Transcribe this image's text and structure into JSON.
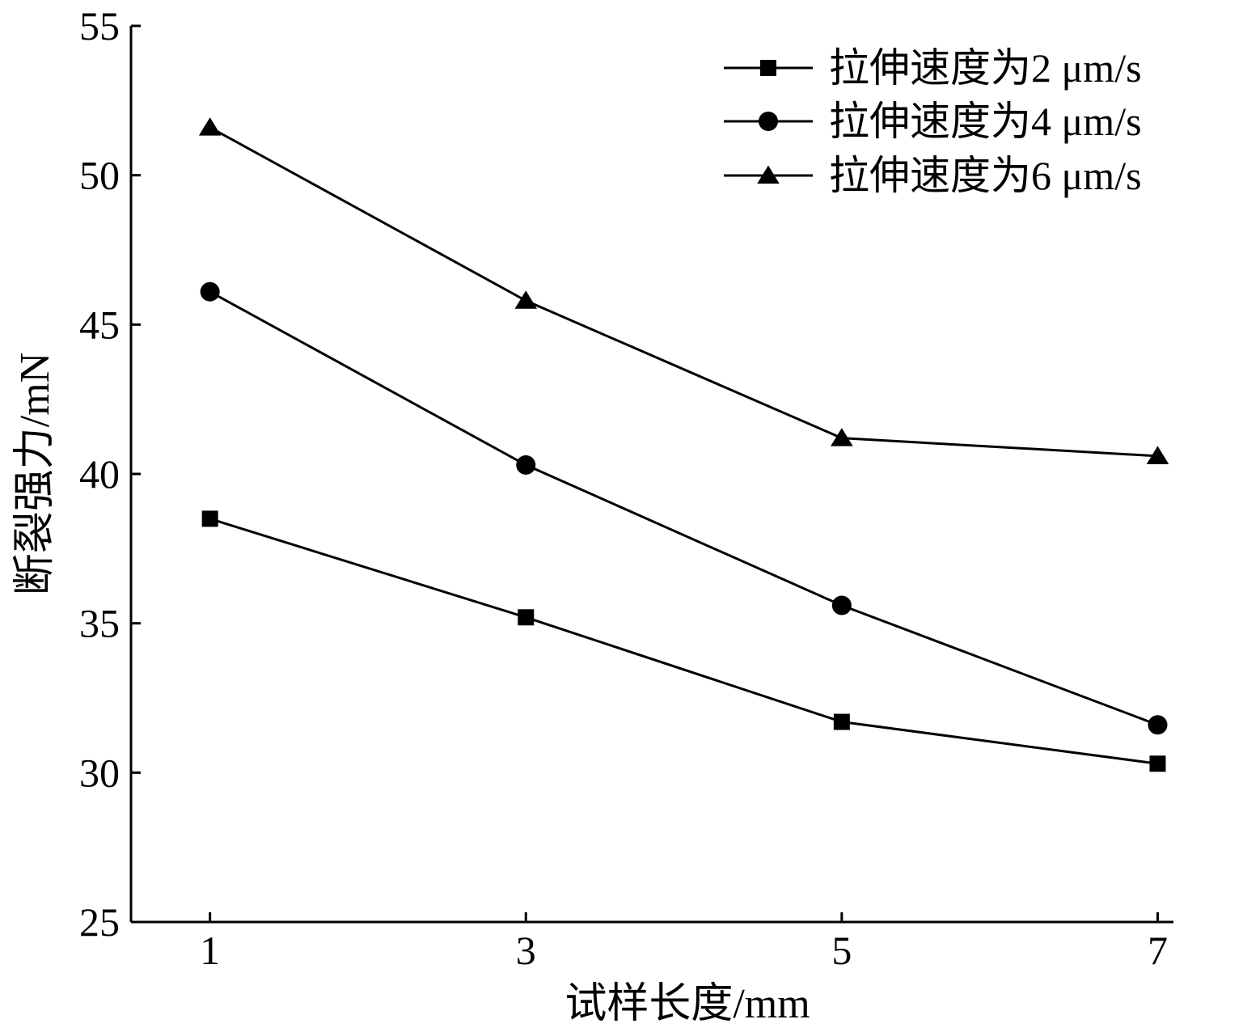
{
  "chart_data": {
    "type": "line",
    "xlabel": "试样长度/mm",
    "ylabel": "断裂强力/mN",
    "x": [
      1,
      3,
      5,
      7
    ],
    "xticks": [
      "1",
      "3",
      "5",
      "7"
    ],
    "xlim": [
      0.5,
      7.1
    ],
    "yticks": [
      "25",
      "30",
      "35",
      "40",
      "45",
      "50",
      "55"
    ],
    "ylim": [
      25,
      55
    ],
    "grid": false,
    "legend_position": "top-right",
    "series": [
      {
        "name": "拉伸速度为2 μm/s",
        "marker": "square",
        "values": [
          38.5,
          35.2,
          31.7,
          30.3
        ]
      },
      {
        "name": "拉伸速度为4 μm/s",
        "marker": "circle",
        "values": [
          46.1,
          40.3,
          35.6,
          31.6
        ]
      },
      {
        "name": "拉伸速度为6 μm/s",
        "marker": "triangle",
        "values": [
          51.6,
          45.8,
          41.2,
          40.6
        ]
      }
    ]
  }
}
